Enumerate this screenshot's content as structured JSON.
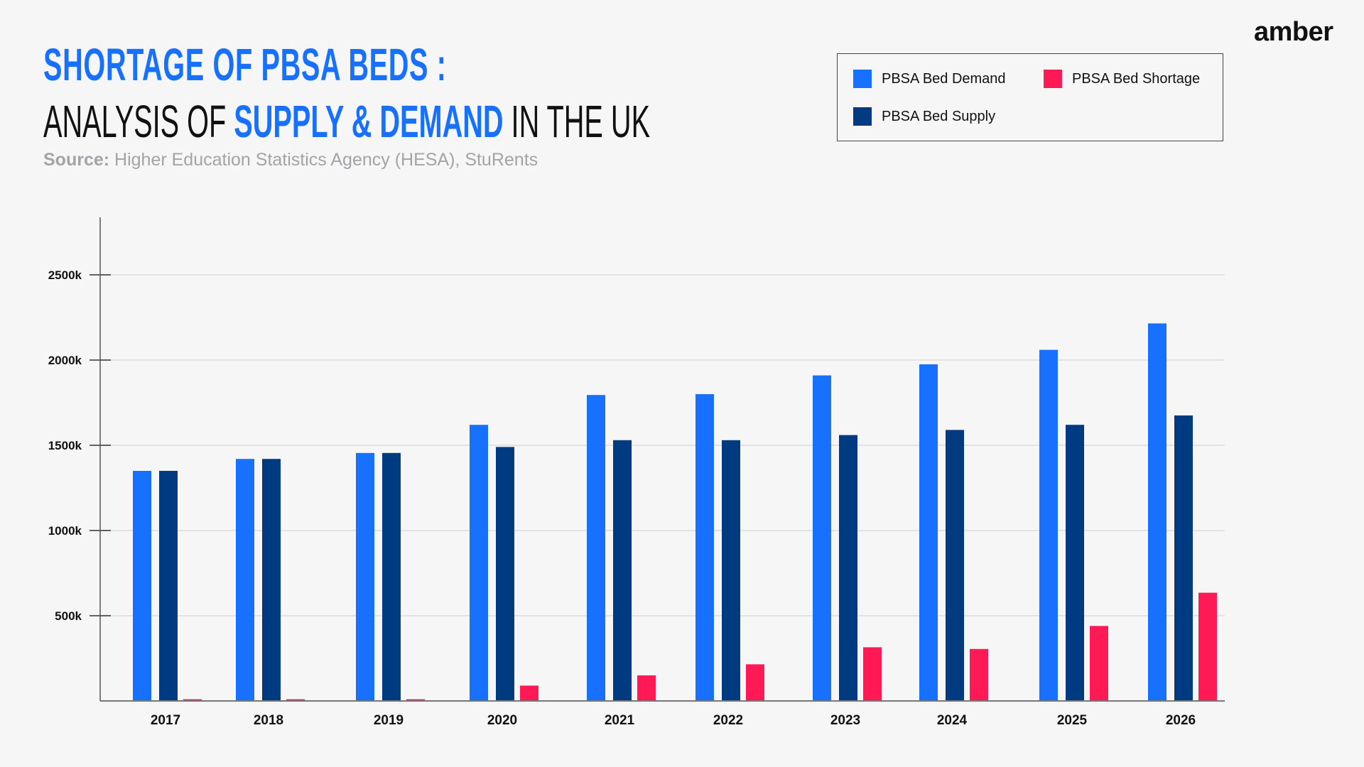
{
  "header": {
    "title_line1": "SHORTAGE OF PBSA BEDS :",
    "title_line2_a": "ANALYSIS OF ",
    "title_line2_highlight": "SUPPLY & DEMAND",
    "title_line2_b": " IN THE UK",
    "source_label": "Source:",
    "source_text": " Higher Education Statistics Agency (HESA), StuRents",
    "brand": "amber"
  },
  "colors": {
    "demand": "#1870ff",
    "supply": "#003a80",
    "shortage": "#ff1a55",
    "accent": "#1870ff"
  },
  "chart_data": {
    "type": "bar",
    "categories": [
      "2017",
      "2018",
      "2019",
      "2020",
      "2021",
      "2022",
      "2023",
      "2024",
      "2025",
      "2026"
    ],
    "series": [
      {
        "name": "PBSA Bed Demand",
        "values": [
          1350,
          1420,
          1455,
          1620,
          1795,
          1800,
          1910,
          1975,
          2060,
          2215
        ]
      },
      {
        "name": "PBSA Bed Supply",
        "values": [
          1350,
          1420,
          1455,
          1490,
          1530,
          1530,
          1560,
          1590,
          1620,
          1675
        ]
      },
      {
        "name": "PBSA Bed Shortage",
        "values": [
          10,
          10,
          10,
          90,
          150,
          215,
          315,
          305,
          440,
          635
        ]
      }
    ],
    "yticks": [
      "500k",
      "1000k",
      "1500k",
      "2000k",
      "2500k"
    ],
    "ytick_values": [
      500,
      1000,
      1500,
      2000,
      2500
    ],
    "ylim": [
      0,
      2850
    ],
    "y_unit": "thousands",
    "grid": true,
    "legend_placement": "top-right"
  }
}
